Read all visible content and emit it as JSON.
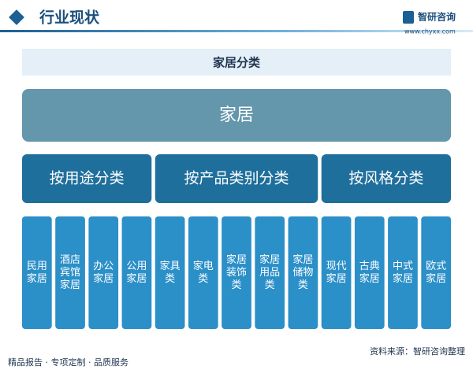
{
  "header": {
    "title": "行业现状"
  },
  "logo": {
    "name": "智研咨询",
    "url": "www.chyxx.com"
  },
  "diagram": {
    "title": "家居分类",
    "root": "家居",
    "groups": [
      {
        "label": "按用途分类",
        "items": [
          "民用家居",
          "酒店宾馆家居",
          "办公家居",
          "公用家居"
        ]
      },
      {
        "label": "按产品类别分类",
        "items": [
          "家具类",
          "家电类",
          "家居装饰类",
          "家居用品类",
          "家居储物类"
        ]
      },
      {
        "label": "按风格分类",
        "items": [
          "现代家居",
          "古典家居",
          "中式家居",
          "欧式家居"
        ]
      }
    ]
  },
  "footer": {
    "left": "精品报告 · 专项定制 · 品质服务",
    "source": "资料来源：智研咨询整理"
  }
}
